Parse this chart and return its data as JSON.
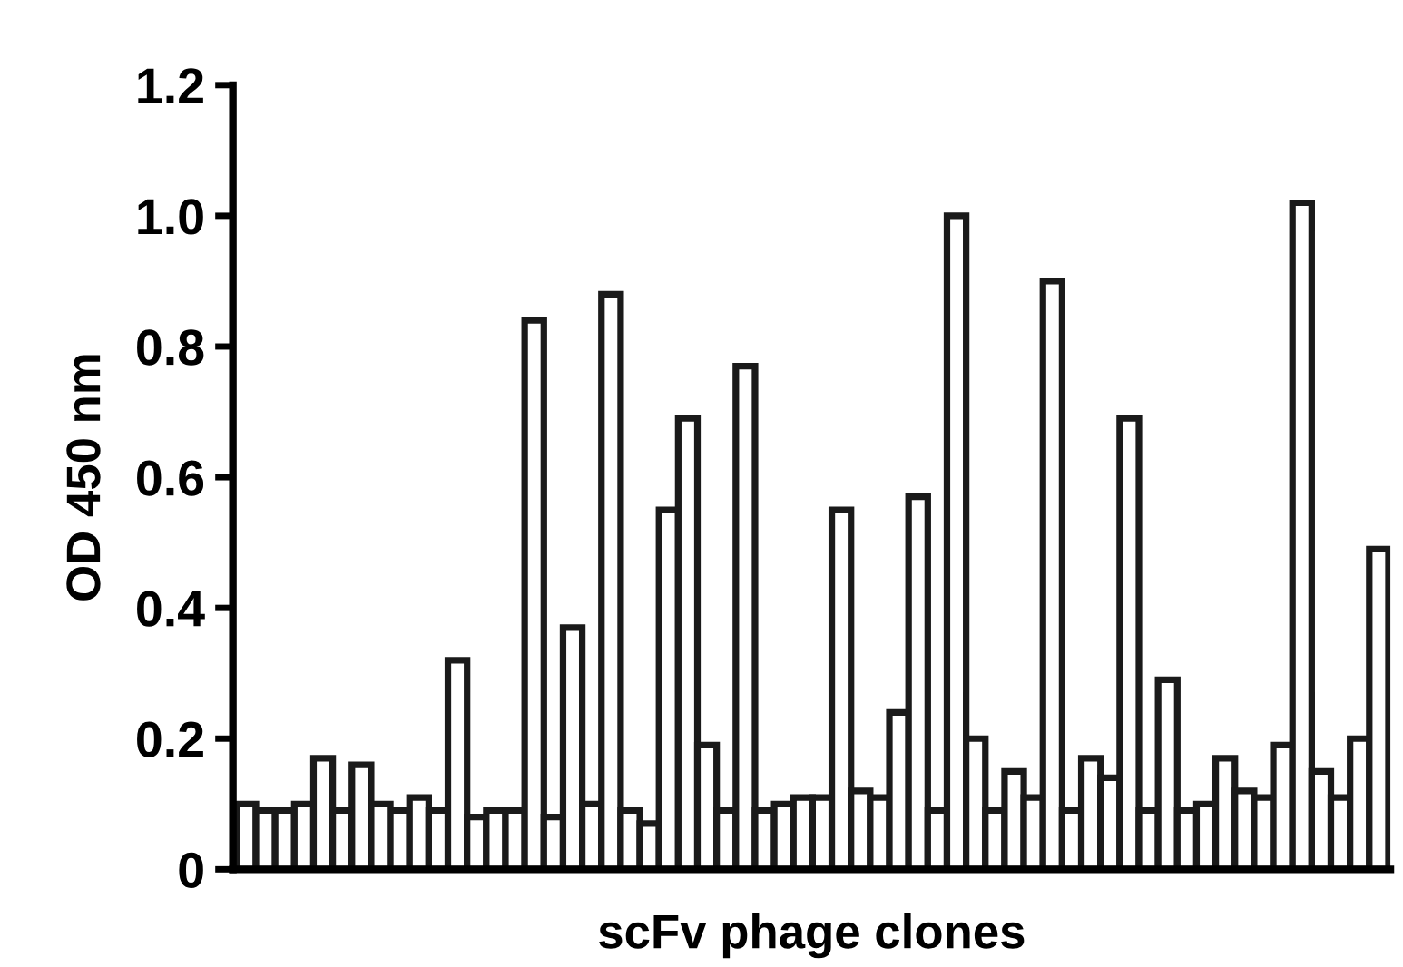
{
  "chart_data": {
    "type": "bar",
    "xlabel": "scFv phage clones",
    "ylabel": "OD 450 nm",
    "categories": [
      null,
      null,
      null,
      null,
      null,
      null,
      null,
      null,
      null,
      null,
      null,
      null,
      null,
      null,
      null,
      null,
      null,
      null,
      null,
      null,
      null,
      null,
      null,
      null,
      null,
      null,
      null,
      null,
      null,
      null,
      null,
      null,
      null,
      null,
      null,
      null,
      null,
      null,
      null,
      null,
      null,
      null,
      null,
      null,
      null,
      null,
      null,
      null,
      null,
      null,
      null,
      null,
      null,
      null,
      null,
      null,
      null,
      null,
      null,
      null
    ],
    "values": [
      0.1,
      0.09,
      0.09,
      0.1,
      0.17,
      0.09,
      0.16,
      0.1,
      0.09,
      0.11,
      0.09,
      0.32,
      0.08,
      0.09,
      0.09,
      0.84,
      0.08,
      0.37,
      0.1,
      0.88,
      0.09,
      0.07,
      0.55,
      0.69,
      0.19,
      0.09,
      0.77,
      0.09,
      0.1,
      0.11,
      0.11,
      0.55,
      0.12,
      0.11,
      0.24,
      0.57,
      0.09,
      1.0,
      0.2,
      0.09,
      0.15,
      0.11,
      0.9,
      0.09,
      0.17,
      0.14,
      0.69,
      0.09,
      0.29,
      0.09,
      0.1,
      0.17,
      0.12,
      0.11,
      0.19,
      1.02,
      0.15,
      0.11,
      0.2,
      0.49
    ],
    "color": "#ffffff",
    "ylim": [
      0,
      1.2
    ],
    "yticks": [
      {
        "value": 0,
        "label": "0"
      },
      0.2,
      0.4,
      0.6,
      0.8,
      {
        "value": 1.0,
        "label": "1.0"
      },
      1.2
    ],
    "grid": false
  }
}
